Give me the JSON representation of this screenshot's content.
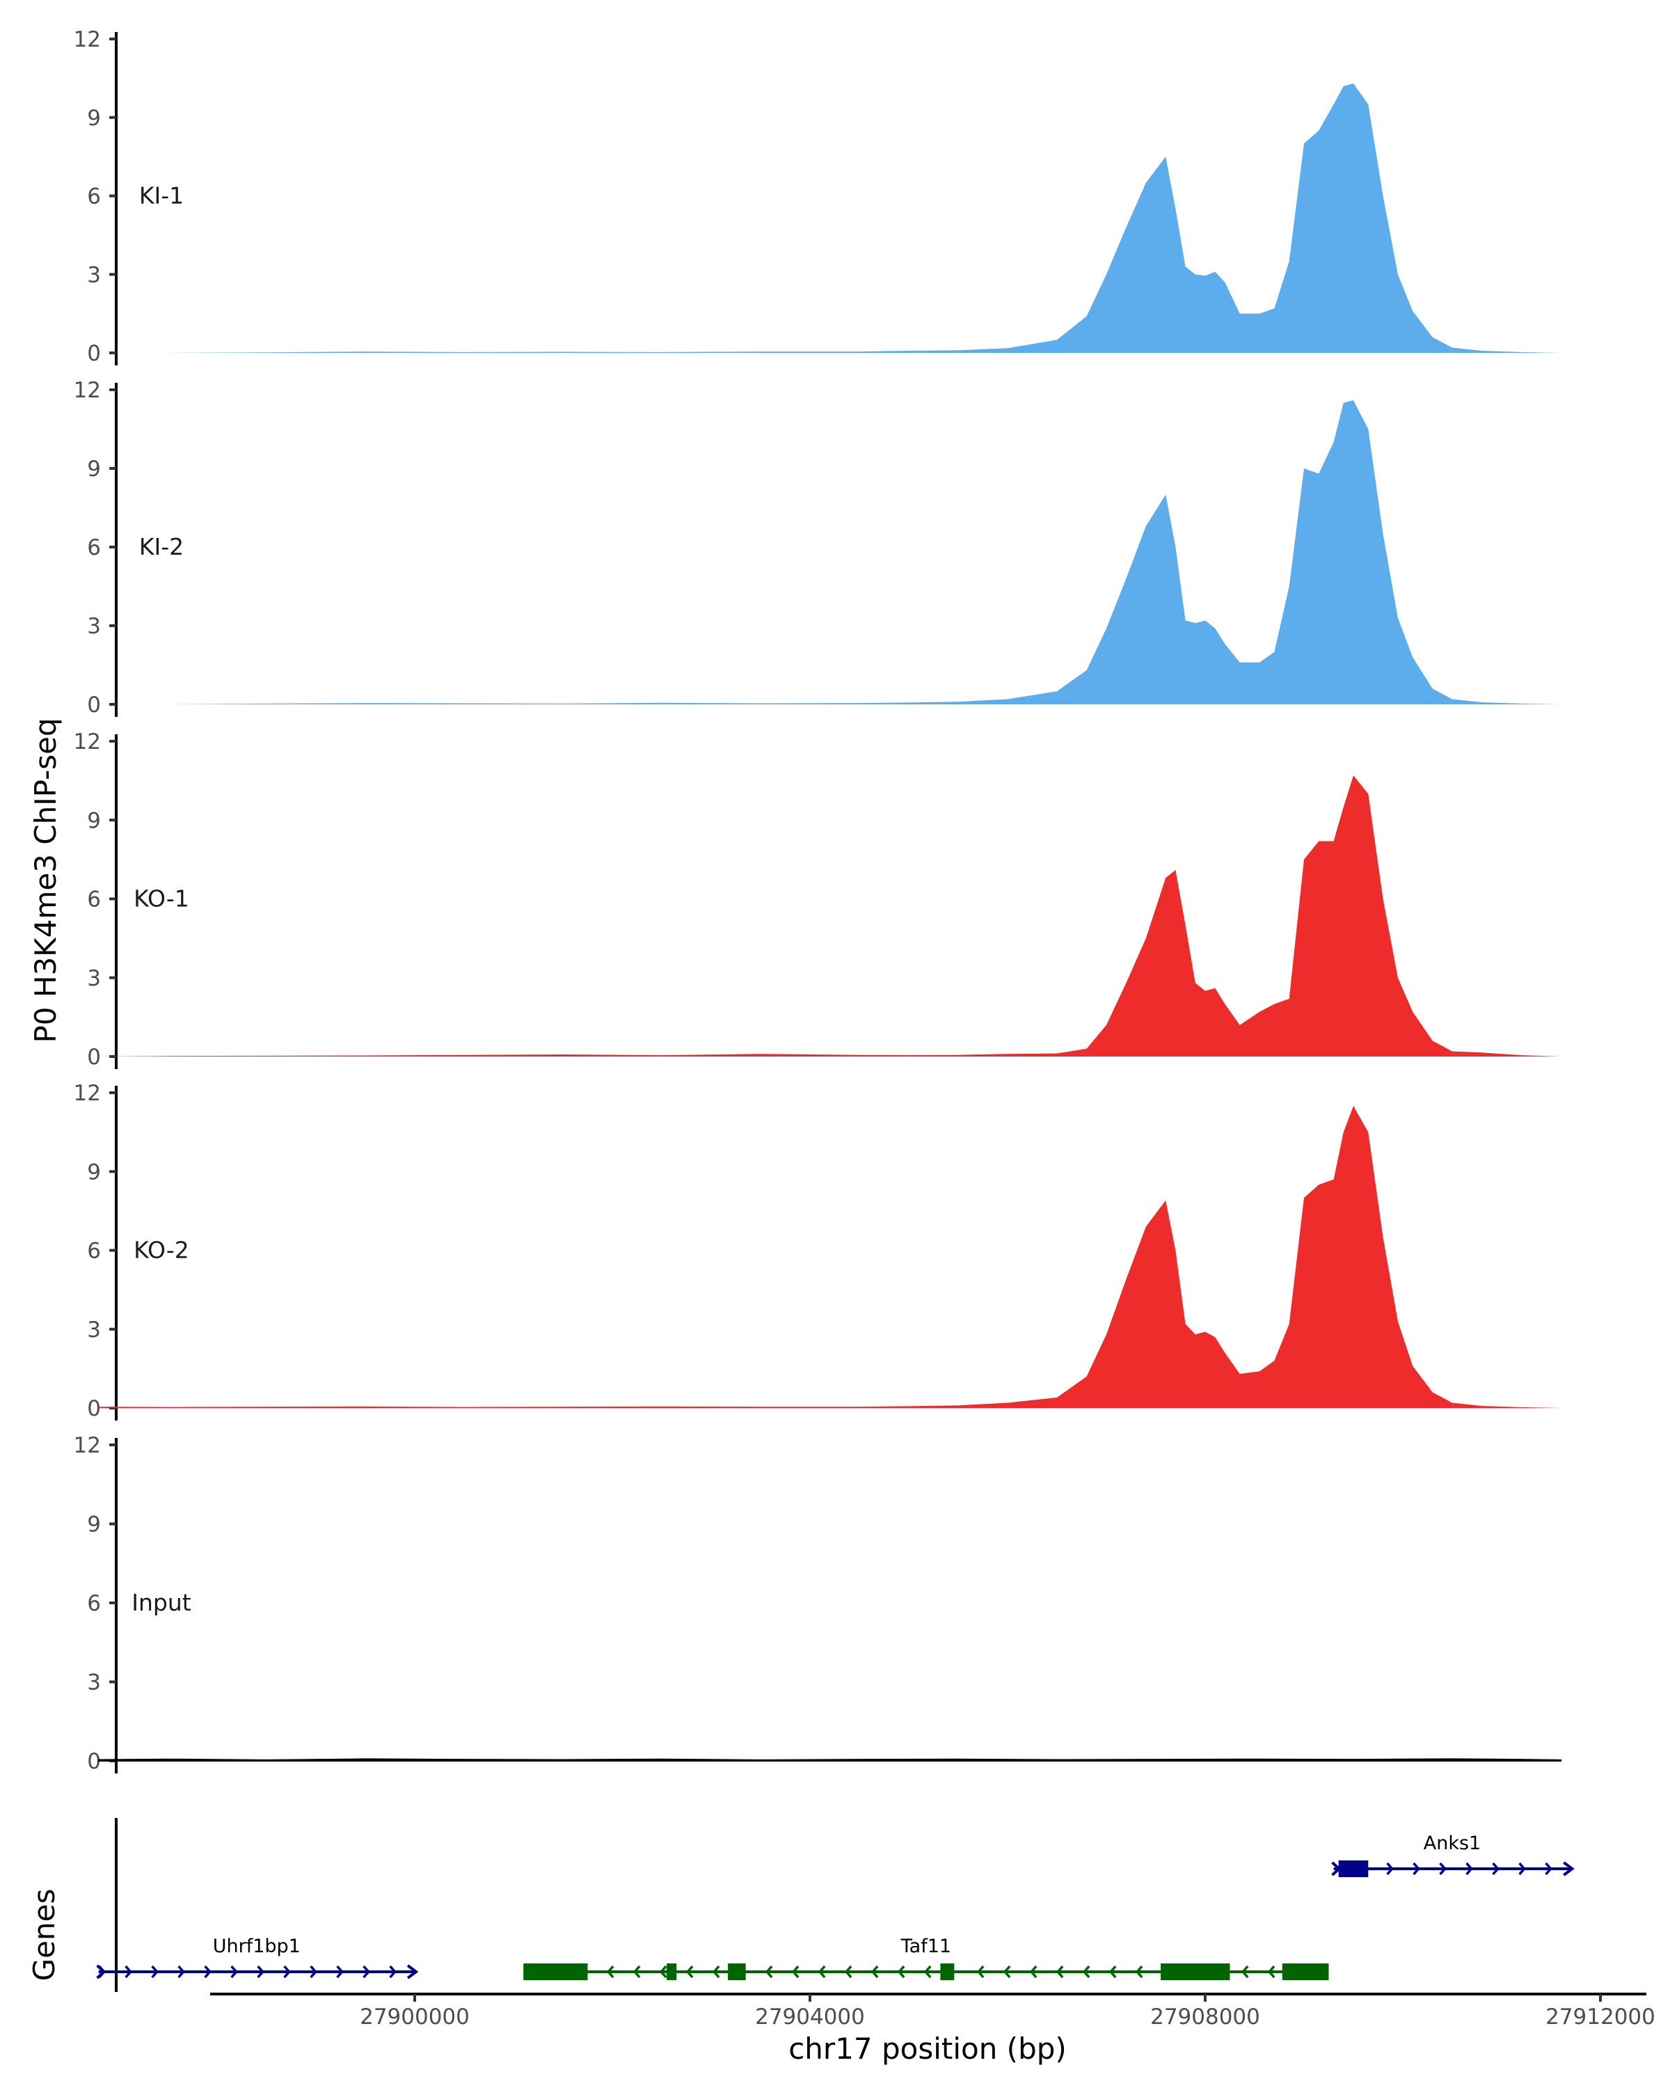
{
  "chart_data": {
    "type": "area",
    "title": "",
    "ylabel": "P0 H3K4me3 ChIP-seq",
    "xlabel": "chr17 position (bp)",
    "xlim": [
      27896900,
      27912200
    ],
    "ylim": [
      0,
      12
    ],
    "yticks": [
      0,
      3,
      6,
      9,
      12
    ],
    "xticks": [
      {
        "value": 27900000,
        "label": "27900000"
      },
      {
        "value": 27904000,
        "label": "27904000"
      },
      {
        "value": 27908000,
        "label": "27908000"
      },
      {
        "value": 27912000,
        "label": "27912000"
      }
    ],
    "series": [
      {
        "name": "KI-1",
        "color": "#5DADEC",
        "x": [
          27896800,
          27897500,
          27898500,
          27899500,
          27900500,
          27901500,
          27902500,
          27903500,
          27904500,
          27905000,
          27905500,
          27906000,
          27906500,
          27906800,
          27907000,
          27907200,
          27907400,
          27907600,
          27907700,
          27907800,
          27907900,
          27908000,
          27908100,
          27908200,
          27908350,
          27908550,
          27908700,
          27908850,
          27909000,
          27909150,
          27909300,
          27909400,
          27909500,
          27909650,
          27909800,
          27909950,
          27910100,
          27910300,
          27910500,
          27910800,
          27911200,
          27911600
        ],
        "y": [
          0,
          0,
          0.02,
          0.05,
          0.03,
          0.04,
          0.03,
          0.05,
          0.05,
          0.08,
          0.1,
          0.18,
          0.5,
          1.4,
          3.0,
          4.8,
          6.5,
          7.5,
          5.5,
          3.3,
          3.0,
          2.95,
          3.1,
          2.7,
          1.5,
          1.5,
          1.7,
          3.5,
          8.0,
          8.5,
          9.5,
          10.2,
          10.3,
          9.5,
          6.0,
          3.0,
          1.6,
          0.6,
          0.2,
          0.08,
          0.03,
          0
        ]
      },
      {
        "name": "KI-2",
        "color": "#5DADEC",
        "x": [
          27896800,
          27897500,
          27898500,
          27899500,
          27900500,
          27901500,
          27902500,
          27903500,
          27904500,
          27905000,
          27905500,
          27906000,
          27906500,
          27906800,
          27907000,
          27907200,
          27907400,
          27907600,
          27907700,
          27907800,
          27907900,
          27908000,
          27908100,
          27908200,
          27908350,
          27908550,
          27908700,
          27908850,
          27909000,
          27909150,
          27909300,
          27909400,
          27909500,
          27909650,
          27909800,
          27909950,
          27910100,
          27910300,
          27910500,
          27910800,
          27911200,
          27911600
        ],
        "y": [
          0,
          0,
          0.03,
          0.05,
          0.04,
          0.03,
          0.06,
          0.04,
          0.05,
          0.07,
          0.1,
          0.2,
          0.5,
          1.3,
          2.9,
          4.8,
          6.8,
          8.0,
          6.0,
          3.2,
          3.1,
          3.2,
          2.9,
          2.3,
          1.6,
          1.6,
          2.0,
          4.5,
          9.0,
          8.8,
          10.0,
          11.5,
          11.6,
          10.5,
          6.5,
          3.3,
          1.8,
          0.6,
          0.2,
          0.08,
          0.03,
          0
        ]
      },
      {
        "name": "KO-1",
        "color": "#EE2C2C",
        "x": [
          27896800,
          27897500,
          27898500,
          27899500,
          27900500,
          27901500,
          27902500,
          27903500,
          27904500,
          27905000,
          27905500,
          27906000,
          27906500,
          27906800,
          27907000,
          27907200,
          27907400,
          27907600,
          27907700,
          27907800,
          27907900,
          27908000,
          27908100,
          27908200,
          27908350,
          27908550,
          27908700,
          27908850,
          27909000,
          27909150,
          27909300,
          27909400,
          27909500,
          27909650,
          27909800,
          27909950,
          27910100,
          27910300,
          27910500,
          27910800,
          27911200,
          27911600
        ],
        "y": [
          0,
          0.02,
          0.03,
          0.04,
          0.06,
          0.08,
          0.05,
          0.1,
          0.06,
          0.05,
          0.06,
          0.1,
          0.12,
          0.3,
          1.2,
          2.8,
          4.5,
          6.8,
          7.1,
          5.0,
          2.8,
          2.5,
          2.6,
          2.0,
          1.2,
          1.7,
          2.0,
          2.2,
          7.5,
          8.2,
          8.2,
          9.5,
          10.7,
          10.0,
          6.0,
          3.0,
          1.7,
          0.6,
          0.2,
          0.15,
          0.05,
          0
        ]
      },
      {
        "name": "KO-2",
        "color": "#EE2C2C",
        "x": [
          27896800,
          27897500,
          27898500,
          27899500,
          27900500,
          27901500,
          27902500,
          27903500,
          27904500,
          27905000,
          27905500,
          27906000,
          27906500,
          27906800,
          27907000,
          27907200,
          27907400,
          27907600,
          27907700,
          27907800,
          27907900,
          27908000,
          27908100,
          27908200,
          27908350,
          27908550,
          27908700,
          27908850,
          27909000,
          27909150,
          27909300,
          27909400,
          27909500,
          27909650,
          27909800,
          27909950,
          27910100,
          27910300,
          27910500,
          27910800,
          27911200,
          27911600
        ],
        "y": [
          0.05,
          0.04,
          0.05,
          0.06,
          0.04,
          0.05,
          0.06,
          0.05,
          0.05,
          0.07,
          0.1,
          0.2,
          0.4,
          1.2,
          2.8,
          4.9,
          6.9,
          7.9,
          6.0,
          3.2,
          2.8,
          2.9,
          2.7,
          2.1,
          1.3,
          1.4,
          1.8,
          3.2,
          8.0,
          8.5,
          8.7,
          10.5,
          11.5,
          10.5,
          6.5,
          3.3,
          1.6,
          0.6,
          0.2,
          0.08,
          0.03,
          0
        ]
      },
      {
        "name": "Input",
        "color": "#000000",
        "x": [
          27896800,
          27897500,
          27898500,
          27899500,
          27900500,
          27901500,
          27902500,
          27903500,
          27904500,
          27905500,
          27906500,
          27907500,
          27908500,
          27909500,
          27910500,
          27911200,
          27911600
        ],
        "y": [
          0.04,
          0.06,
          0.03,
          0.07,
          0.05,
          0.04,
          0.06,
          0.03,
          0.05,
          0.06,
          0.04,
          0.05,
          0.06,
          0.05,
          0.07,
          0.05,
          0.03
        ]
      }
    ],
    "genes_track": {
      "title": "Genes",
      "genes": [
        {
          "name": "Uhrf1bp1",
          "strand": "+",
          "start": 27896800,
          "end": 27900000,
          "color": "#00008B",
          "lane": "bottom",
          "exons": []
        },
        {
          "name": "Taf11",
          "strand": "-",
          "start": 27901100,
          "end": 27909250,
          "color": "#006400",
          "lane": "bottom",
          "exons": [
            [
              27901100,
              27901750
            ],
            [
              27902550,
              27902650
            ],
            [
              27903170,
              27903350
            ],
            [
              27905320,
              27905460
            ],
            [
              27907550,
              27908250
            ],
            [
              27908780,
              27909250
            ]
          ]
        },
        {
          "name": "Anks1",
          "strand": "+",
          "start": 27909300,
          "end": 27911700,
          "color": "#00008B",
          "lane": "top",
          "exons": [
            [
              27909350,
              27909650
            ]
          ]
        }
      ]
    }
  }
}
